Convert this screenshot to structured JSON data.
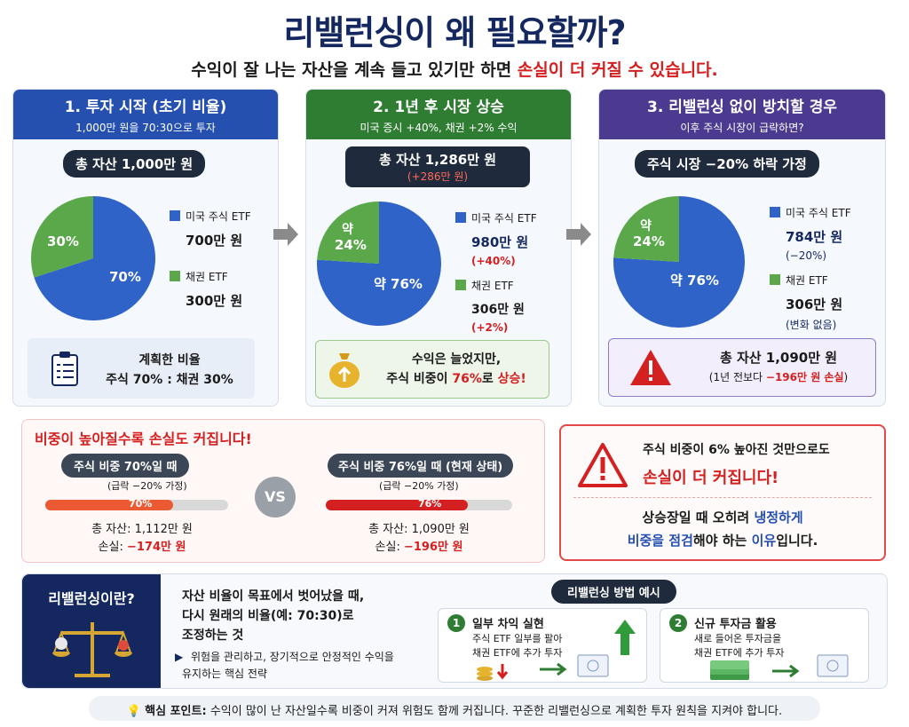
{
  "title": "리밸런싱이 왜 필요할까?",
  "subtitle": {
    "text": "수익이 잘 나는 자산을 계속 들고 있기만 하면 ",
    "highlight": "손실이 더 커질 수 있습니다."
  },
  "colors": {
    "blue": "#2f63c7",
    "green": "#5aa84a",
    "purple": "#4b3a8f",
    "navy": "#14285f",
    "red": "#d42020"
  },
  "cards": [
    {
      "header": "1. 투자 시작 (초기 비율)",
      "sub": "1,000만 원을 70:30으로 투자",
      "pill": "총 자산 1,000만 원",
      "pie": {
        "stock_pct": 70,
        "bond_pct": 30,
        "stock_label": "70%",
        "bond_label": "30%"
      },
      "legend": [
        {
          "label": "미국 주식 ETF",
          "value": "700만 원",
          "change": ""
        },
        {
          "label": "채권 ETF",
          "value": "300만 원",
          "change": ""
        }
      ],
      "note_icon": "clipboard-icon",
      "note_lines": [
        "계획한 비율",
        "주식 70% : 채권 30%"
      ]
    },
    {
      "header": "2. 1년 후 시장 상승",
      "sub": "미국 증시 +40%, 채권 +2% 수익",
      "pill": "총 자산 1,286만 원",
      "pill_sub": "(+286만 원)",
      "pie": {
        "stock_pct": 76,
        "bond_pct": 24,
        "stock_label": "약 76%",
        "bond_label_1": "약",
        "bond_label_2": "24%"
      },
      "legend": [
        {
          "label": "미국 주식 ETF",
          "value": "980만 원",
          "change": "(+40%)"
        },
        {
          "label": "채권 ETF",
          "value": "306만 원",
          "change": "(+2%)"
        }
      ],
      "note_icon": "money-bag-icon",
      "note_lines": [
        "수익은 늘었지만,",
        "주식 비중이 ",
        "76%",
        "로 ",
        "상승!"
      ]
    },
    {
      "header": "3. 리밸런싱 없이 방치할 경우",
      "sub": "이후 주식 시장이 급락하면?",
      "pill": "주식 시장 −20% 하락 가정",
      "pie": {
        "stock_pct": 76,
        "bond_pct": 24,
        "stock_label": "약 76%",
        "bond_label_1": "약",
        "bond_label_2": "24%"
      },
      "legend": [
        {
          "label": "미국 주식 ETF",
          "value": "784만 원",
          "change": "(−20%)"
        },
        {
          "label": "채권 ETF",
          "value": "306만 원",
          "change": "(변화 없음)"
        }
      ],
      "note_icon": "warning-icon",
      "note_lines": [
        "총 자산 1,090만 원",
        "(1년 전보다 ",
        "−196만 원 손실",
        ")"
      ]
    }
  ],
  "compare": {
    "heading": "비중이 높아질수록 손실도 커집니다!",
    "left": {
      "label": "주식 비중 70%일 때",
      "assume": "(급락 −20% 가정)",
      "bar_pct": 70,
      "bar_label": "70%",
      "asset": "총 자산: 1,112만 원",
      "loss_prefix": "손실: ",
      "loss": "−174만 원"
    },
    "vs": "VS",
    "right": {
      "label": "주식 비중 76%일 때 (현재 상태)",
      "assume": "(급락 −20% 가정)",
      "bar_pct": 76,
      "bar_label": "76%",
      "asset": "총 자산: 1,090만 원",
      "loss_prefix": "손실: ",
      "loss": "−196만 원"
    }
  },
  "alert": {
    "line1": "주식 비중이 6% 높아진 것만으로도",
    "line2": "손실이 더 커집니다!",
    "line3_a": "상승장일 때 오히려 ",
    "line3_b": "냉정하게",
    "line4_a": "비중을 점검",
    "line4_b": "해야 하는 ",
    "line4_c": "이유",
    "line4_d": "입니다."
  },
  "definition": {
    "title": "리밸런싱이란?",
    "lines": [
      "자산 비율이 목표에서 벗어났을 때,",
      "다시 원래의 비율(예: 70:30)로",
      "조정하는 것"
    ],
    "bullet": [
      "위험을 관리하고, 장기적으로 안정적인 수익을",
      "유지하는 핵심 전략"
    ]
  },
  "methods": {
    "title": "리밸런싱 방법 예시",
    "items": [
      {
        "num": "1",
        "title": "일부 차익 실현",
        "lines": [
          "주식 ETF 일부를 팔아",
          "채권 ETF에 추가 투자"
        ]
      },
      {
        "num": "2",
        "title": "신규 투자금 활용",
        "lines": [
          "새로 들어온 투자금을",
          "채권 ETF에 추가 투자"
        ]
      }
    ]
  },
  "footer": {
    "label": "핵심 포인트:",
    "text": " 수익이 많이 난 자산일수록 비중이 커져 위험도 함께 커집니다. 꾸준한 리밸런싱으로 계획한 투자 원칙을 지켜야 합니다."
  }
}
